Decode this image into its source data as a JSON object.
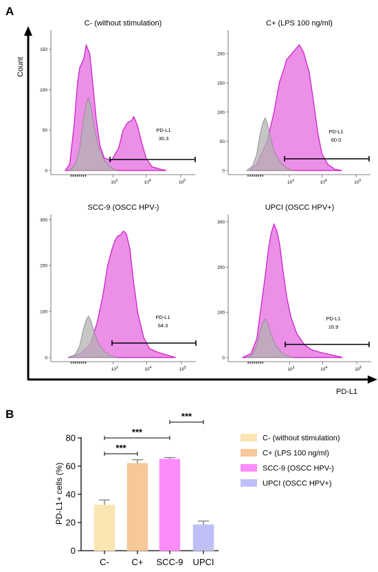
{
  "panel_labels": {
    "a": "A",
    "b": "B"
  },
  "colors": {
    "magenta_fill": "#e77be3",
    "magenta_edge": "#cc16c9",
    "gray_fill": "#b3b3b3",
    "gray_edge": "#8a8a8a",
    "c_minus": "#fbe5b3",
    "c_plus": "#f6c89a",
    "scc9": "#fc8cf9",
    "upci": "#c0c0f8"
  },
  "chart_data": [
    {
      "type": "area",
      "panel": "A",
      "xlabel": "PD-L1",
      "ylabel": "Count",
      "x_scale": "log",
      "x_tick_labels": [
        "10^3",
        "10^4",
        "10^5"
      ],
      "histograms": [
        {
          "title": "C- (without stimulation)",
          "y_ticks": [
            "0",
            "50",
            "100",
            "150"
          ],
          "ylim": [
            0,
            170
          ],
          "gate_label": "PD-L1",
          "gate_value": "30.3",
          "gray_peak": 90,
          "magenta_peaks": [
            155,
            67
          ]
        },
        {
          "title": "C+ (LPS 100 ng/ml)",
          "y_ticks": [
            "0",
            "50",
            "100",
            "150",
            "200"
          ],
          "ylim": [
            0,
            235
          ],
          "gate_label": "PD-L1",
          "gate_value": "60.0",
          "gray_peak": 90,
          "magenta_peaks": [
            215
          ]
        },
        {
          "title": "SCC-9 (OSCC HPV-)",
          "y_ticks": [
            "0",
            "100",
            "200",
            "300"
          ],
          "ylim": [
            0,
            305
          ],
          "gate_label": "PD-L1",
          "gate_value": "64.3",
          "gray_peak": 90,
          "magenta_peaks": [
            275
          ]
        },
        {
          "title": "UPCI (OSCC HPV+)",
          "y_ticks": [
            "0",
            "100",
            "200",
            "300"
          ],
          "ylim": [
            0,
            310
          ],
          "gate_label": "PD-L1",
          "gate_value": "16.9",
          "gray_peak": 85,
          "magenta_peaks": [
            295
          ]
        }
      ]
    },
    {
      "type": "bar",
      "panel": "B",
      "categories": [
        "C-",
        "C+",
        "SCC-9",
        "UPCI"
      ],
      "values": [
        32.5,
        62,
        65,
        18.5
      ],
      "errors": [
        3.5,
        2.5,
        1,
        2.5
      ],
      "ylabel": "PD-L1+ cells (%)",
      "xlabel": "",
      "ylim": [
        0,
        80
      ],
      "y_ticks": [
        0,
        20,
        40,
        60,
        80
      ],
      "legend_position": "right",
      "legend": [
        {
          "label": "C- (without stimulation)",
          "color": "#fbe5b3"
        },
        {
          "label": "C+ (LPS 100 ng/ml)",
          "color": "#f6c89a"
        },
        {
          "label": "SCC-9 (OSCC HPV-)",
          "color": "#fc8cf9"
        },
        {
          "label": "UPCI (OSCC HPV+)",
          "color": "#c0c0f8"
        }
      ],
      "significance": [
        {
          "from": "C-",
          "to": "C+",
          "label": "***"
        },
        {
          "from": "C-",
          "to": "SCC-9",
          "label": "***"
        },
        {
          "from": "SCC-9",
          "to": "UPCI",
          "label": "***"
        }
      ]
    }
  ]
}
